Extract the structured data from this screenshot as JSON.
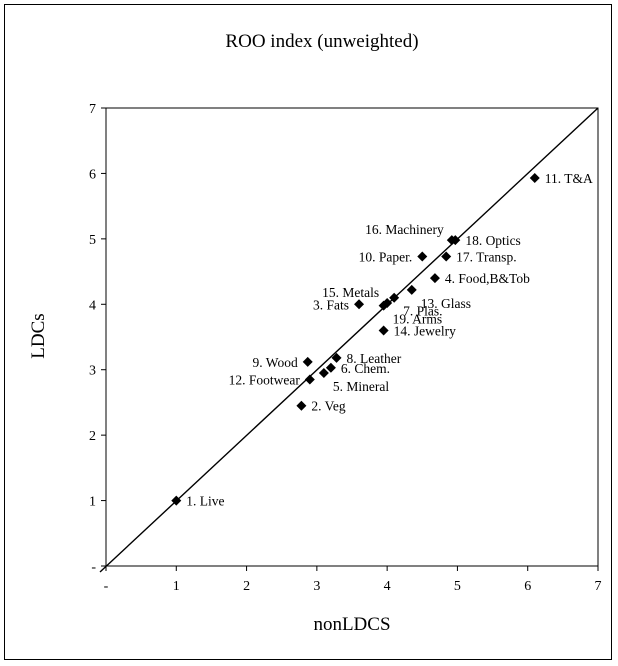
{
  "chart_data": {
    "type": "scatter",
    "title": "ROO index (unweighted)",
    "xlabel": "nonLDCS",
    "ylabel": "LDCs",
    "xlim": [
      0,
      7
    ],
    "ylim": [
      0,
      7
    ],
    "x_ticks": [
      "-",
      "1",
      "2",
      "3",
      "4",
      "5",
      "6",
      "7"
    ],
    "y_ticks": [
      "-",
      "1",
      "2",
      "3",
      "4",
      "5",
      "6",
      "7"
    ],
    "grid": false,
    "legend": "none",
    "reference_line": {
      "from": [
        0,
        0
      ],
      "to": [
        7,
        7
      ]
    },
    "marker_color": "#000000",
    "points": [
      {
        "label": "1. Live",
        "x": 1.0,
        "y": 1.0,
        "label_pos": "right"
      },
      {
        "label": "2. Veg",
        "x": 2.78,
        "y": 2.45,
        "label_pos": "right"
      },
      {
        "label": "3. Fats",
        "x": 3.6,
        "y": 4.0,
        "label_pos": "left"
      },
      {
        "label": "4. Food,B&Tob",
        "x": 4.68,
        "y": 4.4,
        "label_pos": "right"
      },
      {
        "label": "5. Mineral",
        "x": 3.1,
        "y": 2.95,
        "label_pos": "below-right"
      },
      {
        "label": "6. Chem.",
        "x": 3.2,
        "y": 3.03,
        "label_pos": "right"
      },
      {
        "label": "7. Plas.",
        "x": 4.1,
        "y": 4.1,
        "label_pos": "below-right"
      },
      {
        "label": "8. Leather",
        "x": 3.28,
        "y": 3.18,
        "label_pos": "right"
      },
      {
        "label": "9. Wood",
        "x": 2.87,
        "y": 3.12,
        "label_pos": "left"
      },
      {
        "label": "10. Paper.",
        "x": 4.5,
        "y": 4.73,
        "label_pos": "left"
      },
      {
        "label": "11. T&A",
        "x": 6.1,
        "y": 5.93,
        "label_pos": "right"
      },
      {
        "label": "12. Footwear",
        "x": 2.9,
        "y": 2.85,
        "label_pos": "left"
      },
      {
        "label": "13. Glass",
        "x": 4.35,
        "y": 4.22,
        "label_pos": "below-right"
      },
      {
        "label": "14. Jewelry",
        "x": 3.95,
        "y": 3.6,
        "label_pos": "right"
      },
      {
        "label": "15. Metals",
        "x": 4.0,
        "y": 4.02,
        "label_pos": "above-left"
      },
      {
        "label": "16. Machinery",
        "x": 4.92,
        "y": 4.98,
        "label_pos": "above-left"
      },
      {
        "label": "17. Transp.",
        "x": 4.84,
        "y": 4.73,
        "label_pos": "right"
      },
      {
        "label": "18. Optics",
        "x": 4.97,
        "y": 4.98,
        "label_pos": "right"
      },
      {
        "label": "19. Arms",
        "x": 3.95,
        "y": 3.98,
        "label_pos": "below-right"
      }
    ]
  }
}
